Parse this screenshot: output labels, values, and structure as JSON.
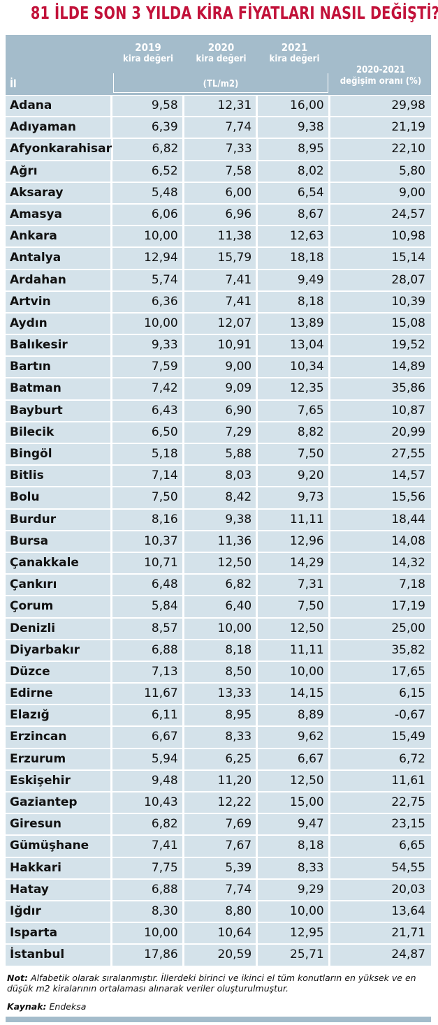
{
  "header": {
    "title": "81 İLDE SON 3 YILDA KİRA FİYATLARI NASIL DEĞİŞTİ?"
  },
  "table": {
    "columns": {
      "il": "İl",
      "y2019": "2019",
      "y2020": "2020",
      "y2021": "2021",
      "kira": "kira değeri",
      "unit": "(TL/m2)",
      "change_years": "2020-2021",
      "change_label": "değişim oranı (%)"
    },
    "rows": [
      [
        "Adana",
        "9,58",
        "12,31",
        "16,00",
        "29,98"
      ],
      [
        "Adıyaman",
        "6,39",
        "7,74",
        "9,38",
        "21,19"
      ],
      [
        "Afyonkarahisar",
        "6,82",
        "7,33",
        "8,95",
        "22,10"
      ],
      [
        "Ağrı",
        "6,52",
        "7,58",
        "8,02",
        "5,80"
      ],
      [
        "Aksaray",
        "5,48",
        "6,00",
        "6,54",
        "9,00"
      ],
      [
        "Amasya",
        "6,06",
        "6,96",
        "8,67",
        "24,57"
      ],
      [
        "Ankara",
        "10,00",
        "11,38",
        "12,63",
        "10,98"
      ],
      [
        "Antalya",
        "12,94",
        "15,79",
        "18,18",
        "15,14"
      ],
      [
        "Ardahan",
        "5,74",
        "7,41",
        "9,49",
        "28,07"
      ],
      [
        "Artvin",
        "6,36",
        "7,41",
        "8,18",
        "10,39"
      ],
      [
        "Aydın",
        "10,00",
        "12,07",
        "13,89",
        "15,08"
      ],
      [
        "Balıkesir",
        "9,33",
        "10,91",
        "13,04",
        "19,52"
      ],
      [
        "Bartın",
        "7,59",
        "9,00",
        "10,34",
        "14,89"
      ],
      [
        "Batman",
        "7,42",
        "9,09",
        "12,35",
        "35,86"
      ],
      [
        "Bayburt",
        "6,43",
        "6,90",
        "7,65",
        "10,87"
      ],
      [
        "Bilecik",
        "6,50",
        "7,29",
        "8,82",
        "20,99"
      ],
      [
        "Bingöl",
        "5,18",
        "5,88",
        "7,50",
        "27,55"
      ],
      [
        "Bitlis",
        "7,14",
        "8,03",
        "9,20",
        "14,57"
      ],
      [
        "Bolu",
        "7,50",
        "8,42",
        "9,73",
        "15,56"
      ],
      [
        "Burdur",
        "8,16",
        "9,38",
        "11,11",
        "18,44"
      ],
      [
        "Bursa",
        "10,37",
        "11,36",
        "12,96",
        "14,08"
      ],
      [
        "Çanakkale",
        "10,71",
        "12,50",
        "14,29",
        "14,32"
      ],
      [
        "Çankırı",
        "6,48",
        "6,82",
        "7,31",
        "7,18"
      ],
      [
        "Çorum",
        "5,84",
        "6,40",
        "7,50",
        "17,19"
      ],
      [
        "Denizli",
        "8,57",
        "10,00",
        "12,50",
        "25,00"
      ],
      [
        "Diyarbakır",
        "6,88",
        "8,18",
        "11,11",
        "35,82"
      ],
      [
        "Düzce",
        "7,13",
        "8,50",
        "10,00",
        "17,65"
      ],
      [
        "Edirne",
        "11,67",
        "13,33",
        "14,15",
        "6,15"
      ],
      [
        "Elazığ",
        "6,11",
        "8,95",
        "8,89",
        "-0,67"
      ],
      [
        "Erzincan",
        "6,67",
        "8,33",
        "9,62",
        "15,49"
      ],
      [
        "Erzurum",
        "5,94",
        "6,25",
        "6,67",
        "6,72"
      ],
      [
        "Eskişehir",
        "9,48",
        "11,20",
        "12,50",
        "11,61"
      ],
      [
        "Gaziantep",
        "10,43",
        "12,22",
        "15,00",
        "22,75"
      ],
      [
        "Giresun",
        "6,82",
        "7,69",
        "9,47",
        "23,15"
      ],
      [
        "Gümüşhane",
        "7,41",
        "7,67",
        "8,18",
        "6,65"
      ],
      [
        "Hakkari",
        "7,75",
        "5,39",
        "8,33",
        "54,55"
      ],
      [
        "Hatay",
        "6,88",
        "7,74",
        "9,29",
        "20,03"
      ],
      [
        "Iğdır",
        "8,30",
        "8,80",
        "10,00",
        "13,64"
      ],
      [
        "Isparta",
        "10,00",
        "10,64",
        "12,95",
        "21,71"
      ],
      [
        "İstanbul",
        "17,86",
        "20,59",
        "25,71",
        "24,87"
      ]
    ]
  },
  "footer": {
    "note_label": "Not:",
    "note": "Alfabetik olarak sıralanmıştır. İllerdeki birinci ve ikinci el tüm konutların en yüksek ve en düşük m2 kiralarının ortalaması alınarak veriler oluşturulmuştur.",
    "source_label": "Kaynak:",
    "source": "Endeksa"
  }
}
